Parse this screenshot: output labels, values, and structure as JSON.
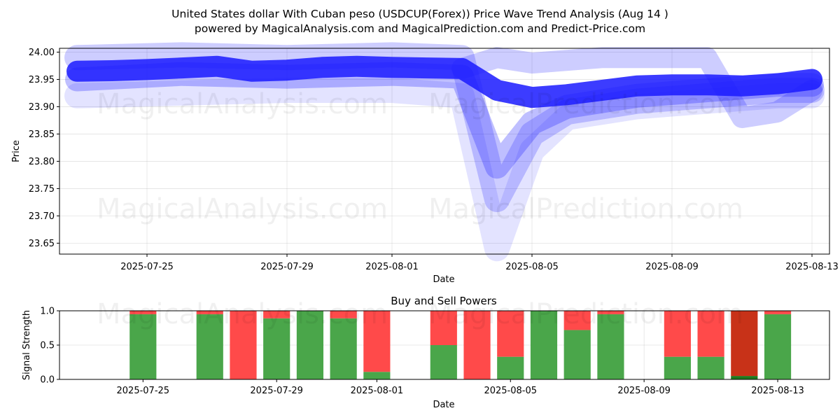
{
  "header": {
    "title": "United States dollar With Cuban peso (USDCUP(Forex)) Price Wave Trend Analysis (Aug 14 )",
    "subtitle": "powered by MagicalAnalysis.com and MagicalPrediction.com and Predict-Price.com"
  },
  "watermarks": [
    "MagicalAnalysis.com",
    "MagicalPrediction.com"
  ],
  "colors": {
    "wave": "#1a1aff",
    "buy": "#4aa64a",
    "sell": "#ff4a4a",
    "sell_dark": "#c83218",
    "buy_dark": "#1e7a1e"
  },
  "chart_data": [
    {
      "type": "line",
      "title": "",
      "xlabel": "Date",
      "ylabel": "Price",
      "ylim": [
        23.63,
        24.007
      ],
      "xlim": [
        "2025-07-22",
        "2025-08-14"
      ],
      "x_ticks": [
        "2025-07-25",
        "2025-07-29",
        "2025-08-01",
        "2025-08-05",
        "2025-08-09",
        "2025-08-13"
      ],
      "y_ticks": [
        23.65,
        23.7,
        23.75,
        23.8,
        23.85,
        23.9,
        23.95,
        24.0
      ],
      "grid": true,
      "series": [
        {
          "x": [
            "2025-07-23",
            "2025-07-24",
            "2025-07-25",
            "2025-07-26",
            "2025-07-27",
            "2025-07-28",
            "2025-07-29",
            "2025-07-30",
            "2025-07-31",
            "2025-08-01",
            "2025-08-02",
            "2025-08-03",
            "2025-08-04",
            "2025-08-05",
            "2025-08-06",
            "2025-08-07",
            "2025-08-08",
            "2025-08-09",
            "2025-08-10",
            "2025-08-11",
            "2025-08-12",
            "2025-08-13"
          ],
          "values": [
            23.965,
            23.966,
            23.968,
            23.971,
            23.974,
            23.965,
            23.967,
            23.972,
            23.974,
            23.972,
            23.971,
            23.97,
            23.93,
            23.917,
            23.922,
            23.93,
            23.938,
            23.94,
            23.94,
            23.938,
            23.942,
            23.95
          ]
        },
        {
          "x": [
            "2025-07-23",
            "2025-07-26",
            "2025-07-29",
            "2025-08-01",
            "2025-08-03",
            "2025-08-04",
            "2025-08-05",
            "2025-08-06",
            "2025-08-08",
            "2025-08-10",
            "2025-08-12",
            "2025-08-13"
          ],
          "values": [
            23.92,
            23.925,
            23.93,
            23.93,
            23.92,
            23.64,
            23.82,
            23.88,
            23.9,
            23.91,
            23.92,
            23.92
          ]
        },
        {
          "x": [
            "2025-07-23",
            "2025-07-26",
            "2025-07-29",
            "2025-08-01",
            "2025-08-03",
            "2025-08-04",
            "2025-08-05",
            "2025-08-06",
            "2025-08-08",
            "2025-08-10",
            "2025-08-12",
            "2025-08-13"
          ],
          "values": [
            23.99,
            23.995,
            23.99,
            23.995,
            23.99,
            23.73,
            23.85,
            23.89,
            23.91,
            23.92,
            23.93,
            23.93
          ]
        },
        {
          "x": [
            "2025-07-23",
            "2025-07-26",
            "2025-07-29",
            "2025-08-01",
            "2025-08-03",
            "2025-08-04",
            "2025-08-05",
            "2025-08-06",
            "2025-08-08",
            "2025-08-10",
            "2025-08-12",
            "2025-08-13"
          ],
          "values": [
            23.95,
            23.96,
            23.955,
            23.96,
            23.955,
            23.79,
            23.87,
            23.9,
            23.92,
            23.93,
            23.94,
            23.94
          ]
        },
        {
          "x": [
            "2025-08-03",
            "2025-08-04",
            "2025-08-05",
            "2025-08-07",
            "2025-08-09",
            "2025-08-10",
            "2025-08-11",
            "2025-08-12",
            "2025-08-13"
          ],
          "values": [
            23.97,
            23.99,
            23.98,
            23.99,
            23.99,
            23.99,
            23.88,
            23.89,
            23.93
          ]
        }
      ]
    },
    {
      "type": "bar",
      "title": "Buy and Sell Powers",
      "xlabel": "Date",
      "ylabel": "Signal Strength",
      "ylim": [
        0,
        1.0
      ],
      "y_ticks": [
        "0.0",
        "0.5",
        "1.0"
      ],
      "x_ticks": [
        "2025-07-25",
        "2025-07-29",
        "2025-08-01",
        "2025-08-05",
        "2025-08-09",
        "2025-08-13"
      ],
      "grid": true,
      "categories": [
        "2025-07-25",
        "2025-07-27",
        "2025-07-28",
        "2025-07-29",
        "2025-07-30",
        "2025-07-31",
        "2025-08-01",
        "2025-08-03",
        "2025-08-04",
        "2025-08-05",
        "2025-08-06",
        "2025-08-07",
        "2025-08-08",
        "2025-08-10",
        "2025-08-11",
        "2025-08-12",
        "2025-08-13"
      ],
      "series": [
        {
          "name": "Buy",
          "values": [
            0.95,
            0.95,
            0.0,
            0.89,
            1.0,
            0.89,
            0.11,
            0.5,
            0.0,
            0.33,
            1.0,
            0.72,
            0.95,
            0.33,
            0.33,
            0.05,
            0.95
          ]
        },
        {
          "name": "Sell",
          "values": [
            0.05,
            0.05,
            1.0,
            0.11,
            0.0,
            0.11,
            0.89,
            0.5,
            1.0,
            0.67,
            0.0,
            0.28,
            0.05,
            0.67,
            0.67,
            0.95,
            0.05
          ]
        }
      ]
    }
  ]
}
